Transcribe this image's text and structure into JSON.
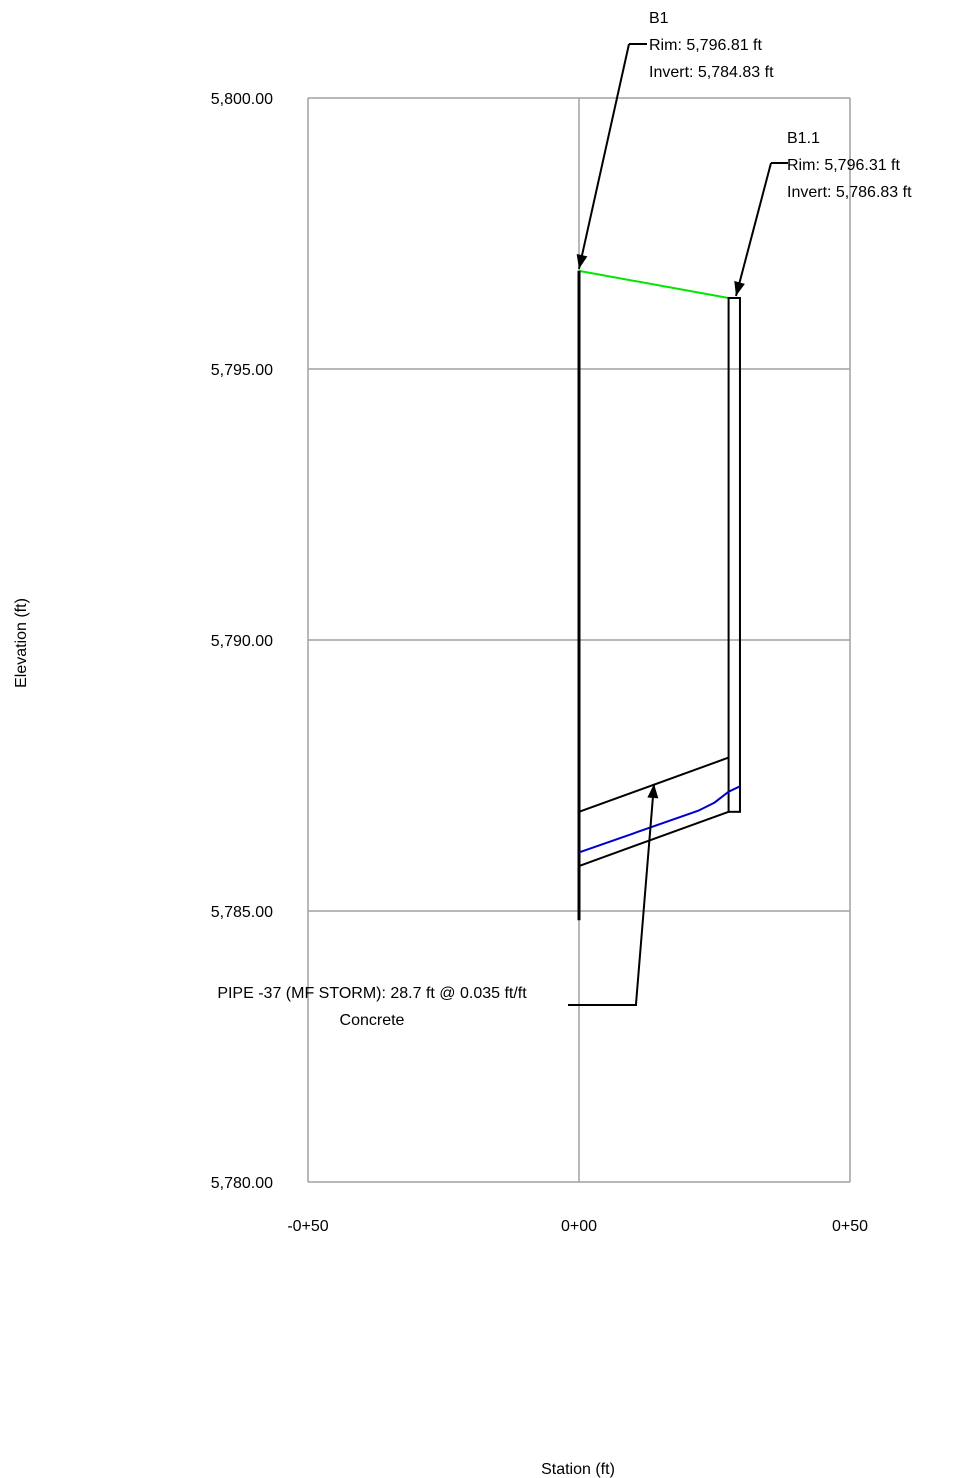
{
  "chart_data": {
    "type": "line",
    "title": "",
    "xlabel": "Station (ft)",
    "ylabel": "Elevation (ft)",
    "xlim": [
      -50,
      50
    ],
    "ylim": [
      5780,
      5800
    ],
    "x_ticks": [
      {
        "value": -50,
        "label": "-0+50"
      },
      {
        "value": 0,
        "label": "0+00"
      },
      {
        "value": 50,
        "label": "0+50"
      }
    ],
    "y_ticks": [
      {
        "value": 5800,
        "label": "5,800.00"
      },
      {
        "value": 5795,
        "label": "5,795.00"
      },
      {
        "value": 5790,
        "label": "5,790.00"
      },
      {
        "value": 5785,
        "label": "5,785.00"
      },
      {
        "value": 5780,
        "label": "5,780.00"
      }
    ],
    "grid": true,
    "colors": {
      "grid": "#a0a0a0",
      "structure": "#000000",
      "ground": "#00e600",
      "hgl": "#0000cc"
    },
    "structures": [
      {
        "name": "B1",
        "station": 0.0,
        "width": 0.3,
        "rim": 5796.81,
        "invert": 5784.83,
        "lines": [
          "B1",
          "Rim: 5,796.81 ft",
          "Invert: 5,784.83 ft"
        ]
      },
      {
        "name": "B1.1",
        "station": 27.6,
        "width": 2.1,
        "rim": 5796.31,
        "invert": 5786.83,
        "lines": [
          "B1.1",
          "Rim: 5,796.31 ft",
          "Invert: 5,786.83 ft"
        ]
      }
    ],
    "ground_line": {
      "x": [
        0.0,
        27.6
      ],
      "y": [
        5796.81,
        5796.31
      ]
    },
    "pipe": {
      "label_lines": [
        "PIPE -37 (MF STORM): 28.7 ft @ 0.035 ft/ft",
        "Concrete"
      ],
      "start": {
        "x": 0.0,
        "invert": 5785.83,
        "crown": 5786.83
      },
      "end": {
        "x": 27.6,
        "invert": 5786.83,
        "crown": 5787.83
      }
    },
    "hgl": {
      "x": [
        0.0,
        22.0,
        25.0,
        27.6,
        29.7
      ],
      "y": [
        5786.08,
        5786.85,
        5787.0,
        5787.2,
        5787.3
      ]
    }
  }
}
